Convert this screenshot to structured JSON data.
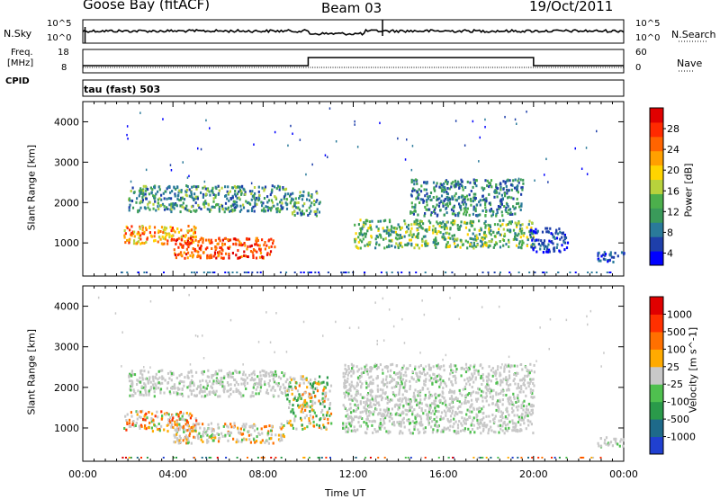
{
  "header": {
    "station": "Goose Bay (fitACF)",
    "beam": "Beam 03",
    "date": "19/Oct/2011"
  },
  "noise_panel": {
    "left_label": "N.Sky",
    "right_label": "N.Search",
    "left_ticks": [
      "10^5",
      "10^0"
    ],
    "right_ticks": [
      "10^5",
      "10^0"
    ]
  },
  "freq_panel": {
    "left_label_1": "Freq.",
    "left_label_2": "[MHz]",
    "right_label": "Nave",
    "left_ticks": [
      "18",
      "8"
    ],
    "right_ticks": [
      "60",
      "0"
    ]
  },
  "cpid": {
    "label": "CPID",
    "mode": "tau (fast) 503"
  },
  "chart_data": [
    {
      "type": "heatmap",
      "parameter": "power",
      "ylabel": "Slant Range [km]",
      "ylim": [
        180,
        4500
      ],
      "yticks": [
        1000,
        2000,
        3000,
        4000
      ],
      "xlim": [
        0,
        24
      ],
      "colorbar": {
        "label": "Power [dB]",
        "ticks": [
          "28",
          "24",
          "20",
          "16",
          "12",
          "8",
          "4"
        ],
        "colors": [
          "#0000ff",
          "#1e3faa",
          "#2a7a9a",
          "#3a9a5a",
          "#4caf4c",
          "#b8d23c",
          "#ffd400",
          "#ffa000",
          "#ff6400",
          "#ff2a00",
          "#e00000"
        ]
      },
      "regions": [
        {
          "t": [
            1.8,
            5.0
          ],
          "r": [
            1000,
            1450
          ],
          "level": "high"
        },
        {
          "t": [
            4.0,
            8.5
          ],
          "r": [
            650,
            1150
          ],
          "level": "very-high"
        },
        {
          "t": [
            2.0,
            9.0
          ],
          "r": [
            1800,
            2450
          ],
          "level": "mid"
        },
        {
          "t": [
            9.0,
            10.5
          ],
          "r": [
            1700,
            2300
          ],
          "level": "mid"
        },
        {
          "t": [
            12.0,
            20.0
          ],
          "r": [
            900,
            1600
          ],
          "level": "mid-high"
        },
        {
          "t": [
            14.5,
            19.5
          ],
          "r": [
            1700,
            2600
          ],
          "level": "low-mid"
        },
        {
          "t": [
            19.8,
            21.5
          ],
          "r": [
            800,
            1400
          ],
          "level": "low"
        },
        {
          "t": [
            22.8,
            24.0
          ],
          "r": [
            550,
            800
          ],
          "level": "low"
        }
      ]
    },
    {
      "type": "heatmap",
      "parameter": "velocity",
      "ylabel": "Slant Range [km]",
      "xlabel": "Time UT",
      "ylim": [
        180,
        4500
      ],
      "yticks": [
        1000,
        2000,
        3000,
        4000
      ],
      "xlim": [
        0,
        24
      ],
      "xticks": [
        "00:00",
        "04:00",
        "08:00",
        "12:00",
        "16:00",
        "20:00",
        "00:00"
      ],
      "colorbar": {
        "label": "Velocity [m s^-1]",
        "ticks": [
          "1000",
          "500",
          "100",
          "25",
          "-25",
          "-100",
          "-500",
          "-1000"
        ],
        "colors": [
          "#2040d0",
          "#1e6a8a",
          "#2a9a4a",
          "#4fc04f",
          "#c8c8c8",
          "#ffaa00",
          "#ff7000",
          "#ff3000",
          "#e00000"
        ]
      },
      "regions": [
        {
          "t": [
            1.8,
            5.0
          ],
          "r": [
            950,
            1450
          ],
          "level": "toward"
        },
        {
          "t": [
            4.0,
            9.0
          ],
          "r": [
            650,
            1150
          ],
          "level": "mixed"
        },
        {
          "t": [
            2.0,
            9.0
          ],
          "r": [
            1800,
            2450
          ],
          "level": "ground"
        },
        {
          "t": [
            9.0,
            11.0
          ],
          "r": [
            1000,
            2300
          ],
          "level": "ground-away"
        },
        {
          "t": [
            11.5,
            20.0
          ],
          "r": [
            900,
            2600
          ],
          "level": "ground"
        },
        {
          "t": [
            22.8,
            24.0
          ],
          "r": [
            550,
            800
          ],
          "level": "ground"
        }
      ]
    }
  ]
}
